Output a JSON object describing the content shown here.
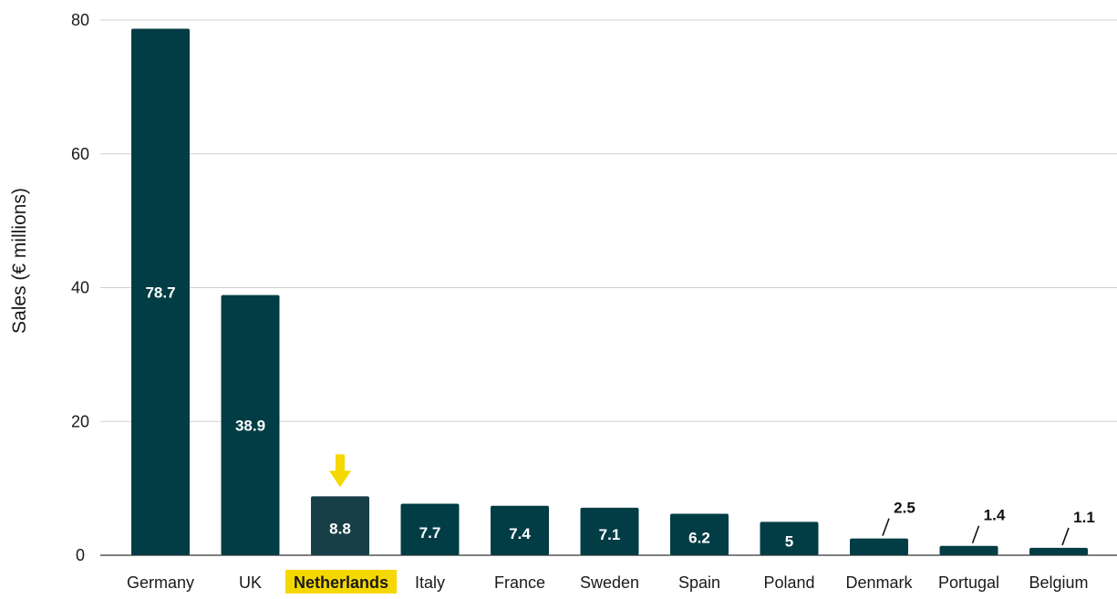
{
  "chart_data": {
    "type": "bar",
    "title": "",
    "xlabel": "",
    "ylabel": "Sales (€ millions)",
    "ylim": [
      0,
      80
    ],
    "yticks": [
      0,
      20,
      40,
      60,
      80
    ],
    "grid": true,
    "categories": [
      "Germany",
      "UK",
      "Netherlands",
      "Italy",
      "France",
      "Sweden",
      "Spain",
      "Poland",
      "Denmark",
      "Portugal",
      "Belgium"
    ],
    "values": [
      78.7,
      38.9,
      8.8,
      7.7,
      7.4,
      7.1,
      6.2,
      5,
      2.5,
      1.4,
      1.1
    ],
    "value_labels": [
      "78.7",
      "38.9",
      "8.8",
      "7.7",
      "7.4",
      "7.1",
      "6.2",
      "5",
      "2.5",
      "1.4",
      "1.1"
    ],
    "highlight": "Netherlands",
    "colors": {
      "bar": "#023d45",
      "highlight_bar": "#173f48",
      "highlight_label_bg": "#f5d800",
      "arrow": "#f5d800"
    }
  }
}
